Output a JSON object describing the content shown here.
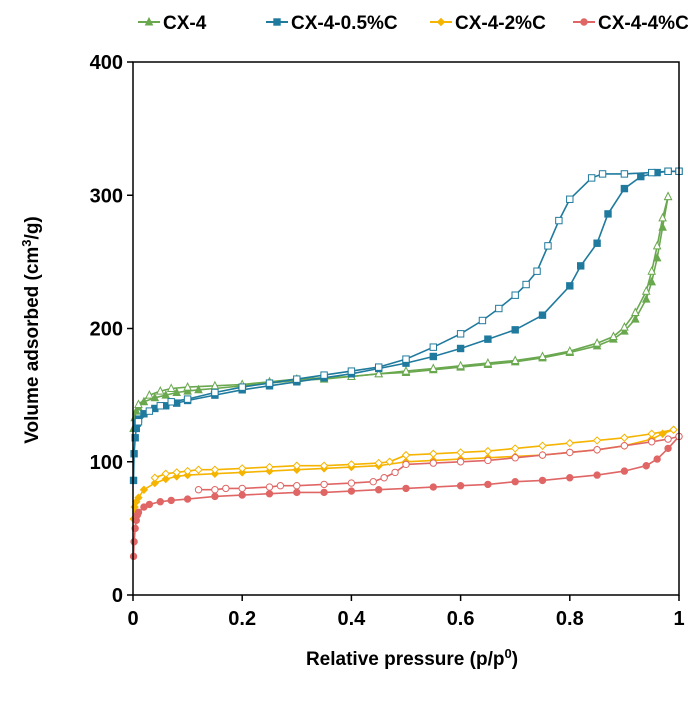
{
  "chart_data": {
    "type": "line",
    "xlabel": "Relative pressure (p/p",
    "xlabel_sup": "0",
    "xlabel_end": ")",
    "ylabel": "Volume adsorbed (cm",
    "ylabel_sup": "3",
    "ylabel_end": "/g)",
    "xlim": [
      0,
      1
    ],
    "ylim": [
      0,
      400
    ],
    "x_ticks": [
      0,
      0.2,
      0.4,
      0.6,
      0.8,
      1
    ],
    "x_tick_labels": [
      "0",
      "0.2",
      "0.4",
      "0.6",
      "0.8",
      "1"
    ],
    "y_ticks": [
      0,
      100,
      200,
      300,
      400
    ],
    "y_tick_labels": [
      "0",
      "100",
      "200",
      "300",
      "400"
    ],
    "grid": false,
    "legend_position": "top",
    "series": [
      {
        "name": "CX-4",
        "color": "#6aa84f",
        "marker": "triangle",
        "adsorption": [
          [
            0.001,
            125
          ],
          [
            0.003,
            133
          ],
          [
            0.006,
            138
          ],
          [
            0.01,
            141
          ],
          [
            0.02,
            145
          ],
          [
            0.04,
            148
          ],
          [
            0.06,
            150
          ],
          [
            0.08,
            152
          ],
          [
            0.1,
            153
          ],
          [
            0.12,
            154
          ],
          [
            0.15,
            155
          ],
          [
            0.2,
            157
          ],
          [
            0.25,
            159
          ],
          [
            0.3,
            161
          ],
          [
            0.35,
            162
          ],
          [
            0.4,
            164
          ],
          [
            0.45,
            166
          ],
          [
            0.5,
            167
          ],
          [
            0.55,
            169
          ],
          [
            0.6,
            171
          ],
          [
            0.65,
            173
          ],
          [
            0.7,
            175
          ],
          [
            0.75,
            178
          ],
          [
            0.8,
            182
          ],
          [
            0.85,
            187
          ],
          [
            0.88,
            192
          ],
          [
            0.9,
            198
          ],
          [
            0.92,
            207
          ],
          [
            0.94,
            222
          ],
          [
            0.95,
            235
          ],
          [
            0.96,
            253
          ],
          [
            0.97,
            276
          ],
          [
            0.98,
            299
          ]
        ],
        "desorption": [
          [
            0.98,
            299
          ],
          [
            0.97,
            283
          ],
          [
            0.96,
            262
          ],
          [
            0.95,
            243
          ],
          [
            0.94,
            228
          ],
          [
            0.92,
            212
          ],
          [
            0.9,
            201
          ],
          [
            0.88,
            194
          ],
          [
            0.85,
            189
          ],
          [
            0.8,
            183
          ],
          [
            0.75,
            179
          ],
          [
            0.7,
            176
          ],
          [
            0.65,
            174
          ],
          [
            0.6,
            172
          ],
          [
            0.55,
            170
          ],
          [
            0.5,
            168
          ],
          [
            0.45,
            166
          ],
          [
            0.4,
            164
          ],
          [
            0.35,
            163
          ],
          [
            0.3,
            162
          ],
          [
            0.25,
            160
          ],
          [
            0.2,
            158
          ],
          [
            0.15,
            157
          ],
          [
            0.1,
            156
          ],
          [
            0.07,
            155
          ],
          [
            0.05,
            153
          ],
          [
            0.03,
            150
          ],
          [
            0.01,
            143
          ]
        ]
      },
      {
        "name": "CX-4-0.5%C",
        "color": "#1f7a9e",
        "marker": "square",
        "adsorption": [
          [
            0.001,
            86
          ],
          [
            0.002,
            106
          ],
          [
            0.004,
            118
          ],
          [
            0.006,
            125
          ],
          [
            0.008,
            129
          ],
          [
            0.01,
            132
          ],
          [
            0.02,
            136
          ],
          [
            0.04,
            140
          ],
          [
            0.06,
            142
          ],
          [
            0.08,
            144
          ],
          [
            0.1,
            146
          ],
          [
            0.15,
            150
          ],
          [
            0.2,
            154
          ],
          [
            0.25,
            157
          ],
          [
            0.3,
            160
          ],
          [
            0.35,
            163
          ],
          [
            0.4,
            166
          ],
          [
            0.45,
            170
          ],
          [
            0.5,
            174
          ],
          [
            0.55,
            179
          ],
          [
            0.6,
            185
          ],
          [
            0.65,
            192
          ],
          [
            0.7,
            199
          ],
          [
            0.75,
            210
          ],
          [
            0.8,
            232
          ],
          [
            0.82,
            247
          ],
          [
            0.85,
            264
          ],
          [
            0.87,
            286
          ],
          [
            0.9,
            305
          ],
          [
            0.93,
            314
          ],
          [
            0.96,
            317
          ],
          [
            0.98,
            318
          ],
          [
            1.0,
            318
          ]
        ],
        "desorption": [
          [
            1.0,
            318
          ],
          [
            0.98,
            318
          ],
          [
            0.95,
            317
          ],
          [
            0.9,
            316
          ],
          [
            0.86,
            316
          ],
          [
            0.84,
            313
          ],
          [
            0.8,
            297
          ],
          [
            0.78,
            281
          ],
          [
            0.76,
            262
          ],
          [
            0.74,
            243
          ],
          [
            0.72,
            233
          ],
          [
            0.7,
            225
          ],
          [
            0.67,
            215
          ],
          [
            0.64,
            206
          ],
          [
            0.6,
            196
          ],
          [
            0.55,
            186
          ],
          [
            0.5,
            177
          ],
          [
            0.45,
            171
          ],
          [
            0.4,
            168
          ],
          [
            0.35,
            165
          ],
          [
            0.3,
            162
          ],
          [
            0.25,
            159
          ],
          [
            0.2,
            156
          ],
          [
            0.15,
            152
          ],
          [
            0.1,
            147
          ],
          [
            0.07,
            145
          ],
          [
            0.05,
            142
          ],
          [
            0.03,
            138
          ],
          [
            0.01,
            130
          ]
        ]
      },
      {
        "name": "CX-4-2%C",
        "color": "#f5b400",
        "marker": "diamond",
        "adsorption": [
          [
            0.001,
            57
          ],
          [
            0.003,
            66
          ],
          [
            0.006,
            70
          ],
          [
            0.01,
            73
          ],
          [
            0.02,
            79
          ],
          [
            0.04,
            84
          ],
          [
            0.06,
            87
          ],
          [
            0.08,
            89
          ],
          [
            0.1,
            90
          ],
          [
            0.15,
            91
          ],
          [
            0.2,
            92
          ],
          [
            0.25,
            93
          ],
          [
            0.3,
            94
          ],
          [
            0.35,
            95
          ],
          [
            0.4,
            96
          ],
          [
            0.45,
            97
          ],
          [
            0.5,
            100
          ],
          [
            0.55,
            101
          ],
          [
            0.6,
            102
          ],
          [
            0.65,
            103
          ],
          [
            0.7,
            104
          ],
          [
            0.75,
            105
          ],
          [
            0.8,
            107
          ],
          [
            0.85,
            109
          ],
          [
            0.9,
            112
          ],
          [
            0.95,
            117
          ],
          [
            0.97,
            121
          ],
          [
            0.99,
            124
          ]
        ],
        "desorption": [
          [
            0.99,
            124
          ],
          [
            0.95,
            121
          ],
          [
            0.9,
            118
          ],
          [
            0.85,
            116
          ],
          [
            0.8,
            114
          ],
          [
            0.75,
            112
          ],
          [
            0.7,
            110
          ],
          [
            0.65,
            108
          ],
          [
            0.6,
            107
          ],
          [
            0.55,
            106
          ],
          [
            0.5,
            105
          ],
          [
            0.47,
            100
          ],
          [
            0.45,
            99
          ],
          [
            0.4,
            98
          ],
          [
            0.35,
            97
          ],
          [
            0.3,
            97
          ],
          [
            0.25,
            96
          ],
          [
            0.2,
            95
          ],
          [
            0.15,
            94
          ],
          [
            0.12,
            94
          ],
          [
            0.1,
            93
          ],
          [
            0.08,
            92
          ],
          [
            0.06,
            91
          ],
          [
            0.04,
            88
          ]
        ]
      },
      {
        "name": "CX-4-4%C",
        "color": "#e06666",
        "marker": "circle",
        "adsorption": [
          [
            0.001,
            29
          ],
          [
            0.002,
            40
          ],
          [
            0.004,
            50
          ],
          [
            0.006,
            56
          ],
          [
            0.008,
            60
          ],
          [
            0.01,
            62
          ],
          [
            0.02,
            66
          ],
          [
            0.03,
            68
          ],
          [
            0.05,
            70
          ],
          [
            0.07,
            71
          ],
          [
            0.1,
            72
          ],
          [
            0.15,
            74
          ],
          [
            0.2,
            75
          ],
          [
            0.25,
            76
          ],
          [
            0.3,
            77
          ],
          [
            0.35,
            77
          ],
          [
            0.4,
            78
          ],
          [
            0.45,
            79
          ],
          [
            0.5,
            80
          ],
          [
            0.55,
            81
          ],
          [
            0.6,
            82
          ],
          [
            0.65,
            83
          ],
          [
            0.7,
            85
          ],
          [
            0.75,
            86
          ],
          [
            0.8,
            88
          ],
          [
            0.85,
            90
          ],
          [
            0.9,
            93
          ],
          [
            0.94,
            97
          ],
          [
            0.96,
            102
          ],
          [
            0.98,
            110
          ],
          [
            1.0,
            119
          ]
        ],
        "desorption": [
          [
            1.0,
            119
          ],
          [
            0.98,
            117
          ],
          [
            0.95,
            115
          ],
          [
            0.9,
            112
          ],
          [
            0.85,
            109
          ],
          [
            0.8,
            107
          ],
          [
            0.75,
            105
          ],
          [
            0.7,
            103
          ],
          [
            0.65,
            101
          ],
          [
            0.6,
            100
          ],
          [
            0.55,
            99
          ],
          [
            0.5,
            98
          ],
          [
            0.48,
            92
          ],
          [
            0.46,
            88
          ],
          [
            0.44,
            85
          ],
          [
            0.4,
            84
          ],
          [
            0.35,
            83
          ],
          [
            0.3,
            82
          ],
          [
            0.27,
            82
          ],
          [
            0.25,
            81
          ],
          [
            0.2,
            80
          ],
          [
            0.17,
            80
          ],
          [
            0.15,
            79
          ],
          [
            0.12,
            79
          ]
        ]
      }
    ]
  }
}
